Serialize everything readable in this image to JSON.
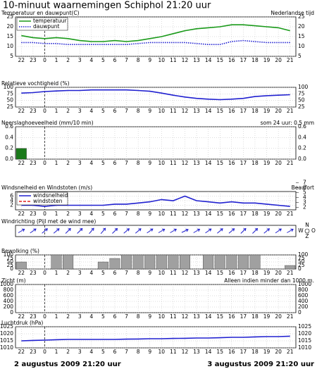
{
  "title": "10-minuut waarnemingen Schiphol 21:20 uur",
  "footer": {
    "start": "2 augustus 2009 21:20 uur",
    "end": "3 augustus 2009 21:20 uur"
  },
  "chart_data": [
    {
      "type": "line",
      "title": "Temperatuur en dauwpunt(C)",
      "note": "Nederlandse tijd",
      "categories": [
        "22",
        "23",
        "0",
        "1",
        "2",
        "3",
        "4",
        "5",
        "6",
        "7",
        "8",
        "9",
        "10",
        "11",
        "12",
        "13",
        "14",
        "15",
        "16",
        "17",
        "18",
        "19",
        "20",
        "21"
      ],
      "ylim": [
        5,
        25
      ],
      "yticks": [
        5,
        10,
        15,
        20,
        25
      ],
      "grid": true,
      "legend": "top-left",
      "series": [
        {
          "name": "temperatuur",
          "color": "#1a9a1a",
          "style": "solid",
          "values": [
            15.5,
            14.5,
            14,
            14.5,
            14,
            13,
            12.5,
            12.5,
            13,
            12.5,
            13,
            14,
            15,
            16.5,
            18,
            19,
            19.5,
            20,
            21,
            21,
            20.5,
            20,
            19.5,
            18
          ]
        },
        {
          "name": "dauwpunt",
          "color": "#2020d0",
          "style": "dotted",
          "values": [
            12,
            12,
            11.5,
            11.5,
            11,
            11,
            11,
            11,
            11,
            11,
            11.5,
            12,
            12,
            12,
            12,
            11.5,
            11,
            11,
            12.5,
            13,
            12.5,
            12,
            12,
            12
          ]
        }
      ]
    },
    {
      "type": "line",
      "title": "Relatieve vochtigheid (%)",
      "categories": [
        "22",
        "23",
        "0",
        "1",
        "2",
        "3",
        "4",
        "5",
        "6",
        "7",
        "8",
        "9",
        "10",
        "11",
        "12",
        "13",
        "14",
        "15",
        "16",
        "17",
        "18",
        "19",
        "20",
        "21"
      ],
      "ylim": [
        25,
        100
      ],
      "yticks": [
        25,
        50,
        75,
        100
      ],
      "grid": true,
      "series": [
        {
          "color": "#2020d0",
          "style": "solid",
          "values": [
            78,
            80,
            84,
            86,
            88,
            88,
            90,
            90,
            90,
            90,
            88,
            85,
            78,
            70,
            63,
            58,
            55,
            53,
            55,
            58,
            65,
            68,
            70,
            72
          ]
        }
      ]
    },
    {
      "type": "bar",
      "title": "Neerslaghoeveelheid (mm/10 min)",
      "note": "som 24 uur: 0.5 mm",
      "categories": [
        "22",
        "23",
        "0",
        "1",
        "2",
        "3",
        "4",
        "5",
        "6",
        "7",
        "8",
        "9",
        "10",
        "11",
        "12",
        "13",
        "14",
        "15",
        "16",
        "17",
        "18",
        "19",
        "20",
        "21"
      ],
      "ylim": [
        0,
        0.6
      ],
      "yticks": [
        {
          "value": 0,
          "label": "0.0"
        },
        {
          "value": 0.2,
          "label": "0.2"
        },
        {
          "value": 0.4,
          "label": "0.4"
        },
        {
          "value": 0.6,
          "label": "0.6"
        }
      ],
      "grid": true,
      "color": "#1a7a1a",
      "values": [
        0.2,
        0,
        0,
        0,
        0,
        0,
        0,
        0,
        0,
        0,
        0,
        0,
        0,
        0,
        0,
        0,
        0,
        0,
        0,
        0,
        0,
        0,
        0,
        0
      ]
    },
    {
      "type": "line",
      "title": "Windsnelheid en Windstoten (m/s)",
      "note": "Beaufort",
      "categories": [
        "22",
        "23",
        "0",
        "1",
        "2",
        "3",
        "4",
        "5",
        "6",
        "7",
        "8",
        "9",
        "10",
        "11",
        "12",
        "13",
        "14",
        "15",
        "16",
        "17",
        "18",
        "19",
        "20",
        "21"
      ],
      "ylim": [
        0,
        8
      ],
      "yticks": [
        2,
        4,
        6
      ],
      "y2lim": [
        1.5,
        7.5
      ],
      "y2ticks": [
        2,
        3,
        4,
        5,
        6,
        7
      ],
      "grid": true,
      "legend": "top-left",
      "series": [
        {
          "name": "windsnelheid",
          "color": "#2020d0",
          "style": "solid",
          "values": [
            2,
            2,
            1.5,
            2,
            2,
            2,
            2,
            2,
            2.5,
            2.5,
            3,
            3.5,
            4.5,
            4,
            6,
            4,
            3.5,
            3,
            3.5,
            3,
            3,
            2.5,
            2,
            1.5
          ]
        },
        {
          "name": "windstoten",
          "color": "#e02020",
          "style": "dashed",
          "values": [
            null,
            null,
            null,
            null,
            null,
            null,
            null,
            null,
            null,
            null,
            null,
            null,
            null,
            null,
            null,
            null,
            null,
            null,
            null,
            null,
            null,
            null,
            null,
            null
          ]
        }
      ]
    },
    {
      "type": "quiver",
      "title": "Windrichting (Pijl met de wind mee)",
      "compass": [
        "N",
        "O",
        "Z",
        "W"
      ],
      "color": "#2020d0",
      "values": [
        240,
        235,
        230,
        230,
        225,
        225,
        220,
        220,
        225,
        230,
        230,
        235,
        240,
        240,
        245,
        240,
        235,
        230,
        230,
        225,
        225,
        230,
        235,
        240
      ]
    },
    {
      "type": "bar",
      "title": "Bewolking (%)",
      "categories": [
        "22",
        "23",
        "0",
        "1",
        "2",
        "3",
        "4",
        "5",
        "6",
        "7",
        "8",
        "9",
        "10",
        "11",
        "12",
        "13",
        "14",
        "15",
        "16",
        "17",
        "18",
        "19",
        "20",
        "21"
      ],
      "ylim": [
        0,
        100
      ],
      "yticks": [
        0,
        25,
        50,
        75,
        100
      ],
      "grid": true,
      "color": "#a0a0a0",
      "values": [
        50,
        0,
        0,
        100,
        100,
        0,
        0,
        50,
        75,
        100,
        100,
        100,
        100,
        100,
        100,
        0,
        100,
        100,
        100,
        100,
        100,
        0,
        0,
        25
      ]
    },
    {
      "type": "line",
      "title": "Zicht (m)",
      "note": "Alleen indien minder dan 1000 m.",
      "categories": [
        "22",
        "23",
        "0",
        "1",
        "2",
        "3",
        "4",
        "5",
        "6",
        "7",
        "8",
        "9",
        "10",
        "11",
        "12",
        "13",
        "14",
        "15",
        "16",
        "17",
        "18",
        "19",
        "20",
        "21"
      ],
      "ylim": [
        0,
        1000
      ],
      "yticks": [
        0,
        200,
        400,
        600,
        800,
        1000
      ],
      "grid": true,
      "series": []
    },
    {
      "type": "line",
      "title": "Luchtdruk (hPa)",
      "categories": [
        "22",
        "23",
        "0",
        "1",
        "2",
        "3",
        "4",
        "5",
        "6",
        "7",
        "8",
        "9",
        "10",
        "11",
        "12",
        "13",
        "14",
        "15",
        "16",
        "17",
        "18",
        "19",
        "20",
        "21"
      ],
      "ylim": [
        1010,
        1025
      ],
      "yticks": [
        1010,
        1015,
        1020,
        1025
      ],
      "grid": true,
      "series": [
        {
          "color": "#2020d0",
          "style": "solid",
          "values": [
            1015,
            1015.3,
            1015.5,
            1015.8,
            1016,
            1016,
            1016,
            1016,
            1016,
            1016.2,
            1016.3,
            1016.5,
            1016.5,
            1016.7,
            1016.8,
            1017,
            1017,
            1017.2,
            1017.5,
            1017.5,
            1017.8,
            1018,
            1018,
            1018.3
          ]
        }
      ]
    }
  ]
}
